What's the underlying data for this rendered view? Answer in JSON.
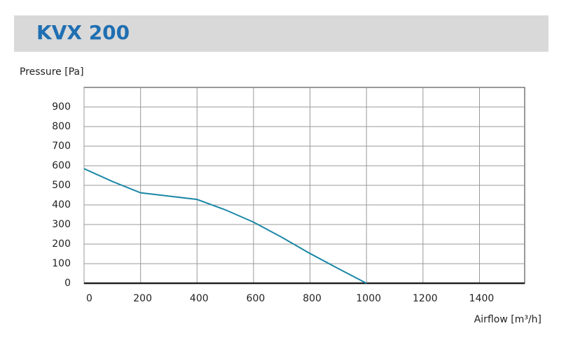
{
  "chart_data": {
    "type": "line",
    "title": "KVX 200",
    "y_label": "Pressure [Pa]",
    "x_label": "Airflow [m³/h]",
    "x": [
      0,
      100,
      200,
      300,
      400,
      500,
      600,
      700,
      800,
      900,
      1000
    ],
    "series": [
      {
        "color": "#1b87a6",
        "values": [
          585,
          520,
          462,
          445,
          428,
          375,
          312,
          235,
          152,
          75,
          0
        ]
      }
    ],
    "xlim": [
      0,
      1560
    ],
    "xticks": [
      0,
      200,
      400,
      600,
      800,
      1000,
      1200,
      1400
    ],
    "ylim": [
      0,
      1000
    ],
    "yticks": [
      0,
      100,
      200,
      300,
      400,
      500,
      600,
      700,
      800,
      900
    ],
    "grid": true
  }
}
